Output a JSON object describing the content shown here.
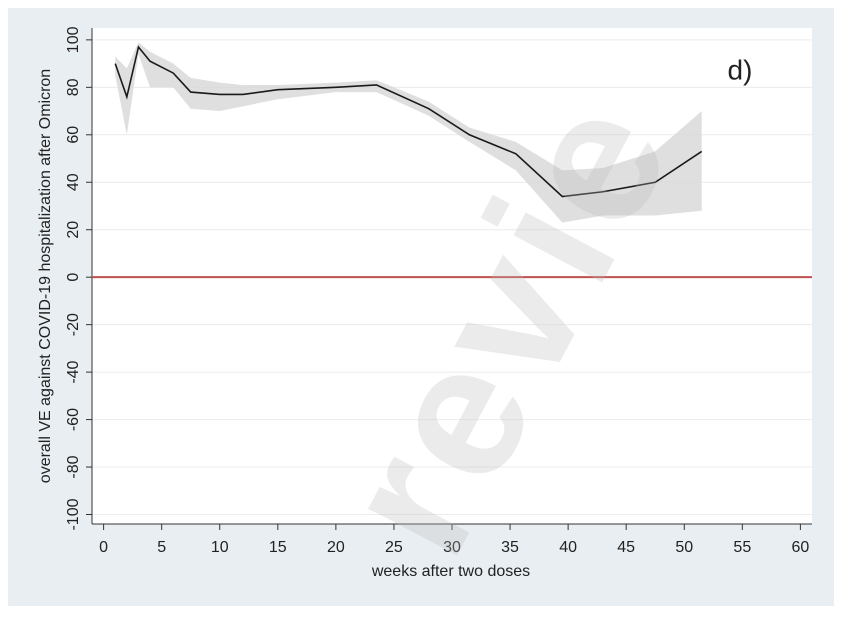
{
  "chart_data": {
    "type": "line",
    "annotation": "d)",
    "watermark": "revie",
    "xlabel": "weeks after two doses",
    "ylabel": "overall VE against COVID-19 hospitalization after Omicron",
    "xlim": [
      -1,
      61
    ],
    "ylim": [
      -104,
      105
    ],
    "xticks": [
      0,
      5,
      10,
      15,
      20,
      25,
      30,
      35,
      40,
      45,
      50,
      55,
      60
    ],
    "yticks": [
      -100,
      -80,
      -60,
      -40,
      -20,
      0,
      20,
      40,
      60,
      80,
      100
    ],
    "grid": true,
    "reference_line": 0,
    "reference_color": "#c0504d",
    "series": [
      {
        "color": "#1a1a1a",
        "band_color": "#d9d9d9",
        "x": [
          1,
          2,
          3,
          4,
          6,
          7.5,
          10,
          12,
          15,
          20,
          23.5,
          28,
          31.5,
          35.5,
          39.5,
          43,
          47.5,
          51.5
        ],
        "values": [
          90,
          76,
          97,
          91,
          86,
          78,
          77,
          77,
          79,
          80,
          81,
          71,
          60,
          52,
          34,
          36,
          40,
          53
        ],
        "upper": [
          93,
          88,
          99,
          95,
          90,
          84,
          82,
          81,
          81,
          82,
          83,
          74,
          63,
          57,
          45,
          46,
          53,
          70
        ],
        "lower": [
          85,
          60,
          94,
          80,
          80,
          71,
          70,
          72,
          75,
          78,
          78,
          68,
          57,
          45,
          23,
          26,
          26,
          28
        ]
      }
    ]
  }
}
